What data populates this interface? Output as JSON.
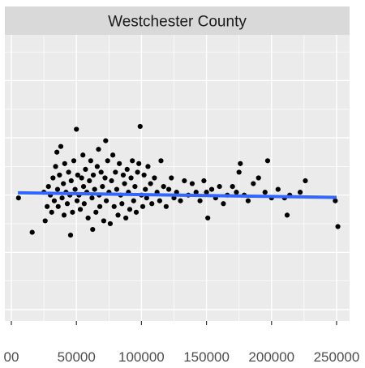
{
  "chart_data": {
    "type": "scatter",
    "title": "",
    "facet_label": "Westchester County",
    "xlabel": "",
    "ylabel": "",
    "xlim": [
      -5000,
      260000
    ],
    "ylim": [
      -2.2,
      2.8
    ],
    "x_ticks": [
      0,
      50000,
      100000,
      150000,
      200000,
      250000
    ],
    "x_tick_labels": [
      "00",
      "50000",
      "100000",
      "150000",
      "200000",
      "250000"
    ],
    "grid": true,
    "legend": "none",
    "colors": {
      "panel": "#ebebeb",
      "strip": "#d9d9d9",
      "grid": "#ffffff",
      "points": "#000000",
      "trend": "#3366ff"
    },
    "trend_line": {
      "x": [
        5000,
        250000
      ],
      "y": [
        0.04,
        -0.04
      ]
    },
    "points": [
      [
        5500,
        -0.05
      ],
      [
        16000,
        -0.65
      ],
      [
        25000,
        0.05
      ],
      [
        26000,
        -0.45
      ],
      [
        27500,
        -0.2
      ],
      [
        28500,
        0.15
      ],
      [
        30000,
        0.0
      ],
      [
        31000,
        -0.3
      ],
      [
        32000,
        0.3
      ],
      [
        33000,
        -0.1
      ],
      [
        34000,
        0.5
      ],
      [
        35000,
        0.75
      ],
      [
        35500,
        0.1
      ],
      [
        36000,
        -0.2
      ],
      [
        37000,
        0.35
      ],
      [
        38000,
        0.85
      ],
      [
        39000,
        -0.05
      ],
      [
        40000,
        0.2
      ],
      [
        40500,
        -0.35
      ],
      [
        41000,
        0.55
      ],
      [
        42000,
        0.05
      ],
      [
        43000,
        -0.15
      ],
      [
        44000,
        0.4
      ],
      [
        45000,
        0.0
      ],
      [
        45500,
        -0.7
      ],
      [
        46000,
        0.25
      ],
      [
        47000,
        -0.3
      ],
      [
        48000,
        0.6
      ],
      [
        49000,
        0.1
      ],
      [
        50000,
        1.15
      ],
      [
        50500,
        -0.1
      ],
      [
        51000,
        0.35
      ],
      [
        52000,
        0.0
      ],
      [
        53000,
        -0.25
      ],
      [
        54000,
        0.3
      ],
      [
        55000,
        0.7
      ],
      [
        55500,
        0.15
      ],
      [
        56000,
        -0.15
      ],
      [
        57000,
        0.45
      ],
      [
        58000,
        0.05
      ],
      [
        59000,
        -0.4
      ],
      [
        60000,
        0.25
      ],
      [
        61000,
        0.6
      ],
      [
        62000,
        -0.05
      ],
      [
        62500,
        -0.6
      ],
      [
        63000,
        0.35
      ],
      [
        64000,
        0.1
      ],
      [
        65000,
        -0.3
      ],
      [
        66000,
        0.5
      ],
      [
        67000,
        0.8
      ],
      [
        67500,
        0.0
      ],
      [
        68000,
        -0.2
      ],
      [
        69000,
        0.4
      ],
      [
        70000,
        0.15
      ],
      [
        71000,
        -0.45
      ],
      [
        72000,
        0.3
      ],
      [
        72500,
        0.95
      ],
      [
        73000,
        -0.1
      ],
      [
        74000,
        0.6
      ],
      [
        75000,
        0.05
      ],
      [
        76000,
        -0.5
      ],
      [
        77000,
        0.25
      ],
      [
        78000,
        0.7
      ],
      [
        79000,
        -0.2
      ],
      [
        80000,
        0.4
      ],
      [
        81000,
        0.1
      ],
      [
        82000,
        -0.35
      ],
      [
        83000,
        0.55
      ],
      [
        84000,
        0.0
      ],
      [
        85000,
        -0.15
      ],
      [
        86000,
        0.35
      ],
      [
        87000,
        0.2
      ],
      [
        88000,
        -0.4
      ],
      [
        89000,
        0.45
      ],
      [
        90000,
        0.05
      ],
      [
        91000,
        -0.25
      ],
      [
        92000,
        0.3
      ],
      [
        93000,
        0.6
      ],
      [
        94000,
        -0.1
      ],
      [
        95000,
        0.15
      ],
      [
        96000,
        -0.3
      ],
      [
        97000,
        0.4
      ],
      [
        98000,
        0.55
      ],
      [
        99000,
        1.2
      ],
      [
        100000,
        0.0
      ],
      [
        101000,
        -0.2
      ],
      [
        102000,
        0.35
      ],
      [
        103000,
        0.1
      ],
      [
        104000,
        -0.05
      ],
      [
        105000,
        0.5
      ],
      [
        107000,
        0.2
      ],
      [
        108000,
        -0.15
      ],
      [
        110000,
        0.3
      ],
      [
        112000,
        0.05
      ],
      [
        114000,
        -0.1
      ],
      [
        115000,
        0.6
      ],
      [
        117000,
        0.15
      ],
      [
        119000,
        -0.2
      ],
      [
        121000,
        0.1
      ],
      [
        123000,
        0.3
      ],
      [
        125000,
        -0.05
      ],
      [
        127000,
        0.05
      ],
      [
        130000,
        -0.1
      ],
      [
        133000,
        0.25
      ],
      [
        136000,
        0.0
      ],
      [
        139000,
        0.2
      ],
      [
        142000,
        0.05
      ],
      [
        145000,
        -0.1
      ],
      [
        148000,
        0.25
      ],
      [
        150000,
        0.05
      ],
      [
        151000,
        -0.4
      ],
      [
        154000,
        0.1
      ],
      [
        157000,
        -0.05
      ],
      [
        160000,
        0.15
      ],
      [
        163000,
        -0.15
      ],
      [
        166000,
        0.0
      ],
      [
        170000,
        0.15
      ],
      [
        173000,
        0.05
      ],
      [
        175000,
        0.4
      ],
      [
        176000,
        0.55
      ],
      [
        179000,
        0.0
      ],
      [
        182000,
        -0.1
      ],
      [
        186000,
        0.2
      ],
      [
        190000,
        0.3
      ],
      [
        195000,
        0.05
      ],
      [
        197000,
        0.6
      ],
      [
        200000,
        -0.05
      ],
      [
        205000,
        0.1
      ],
      [
        210000,
        -0.05
      ],
      [
        212000,
        -0.35
      ],
      [
        214000,
        0.0
      ],
      [
        222000,
        0.05
      ],
      [
        226000,
        0.25
      ],
      [
        249000,
        -0.1
      ],
      [
        251000,
        -0.55
      ]
    ]
  }
}
